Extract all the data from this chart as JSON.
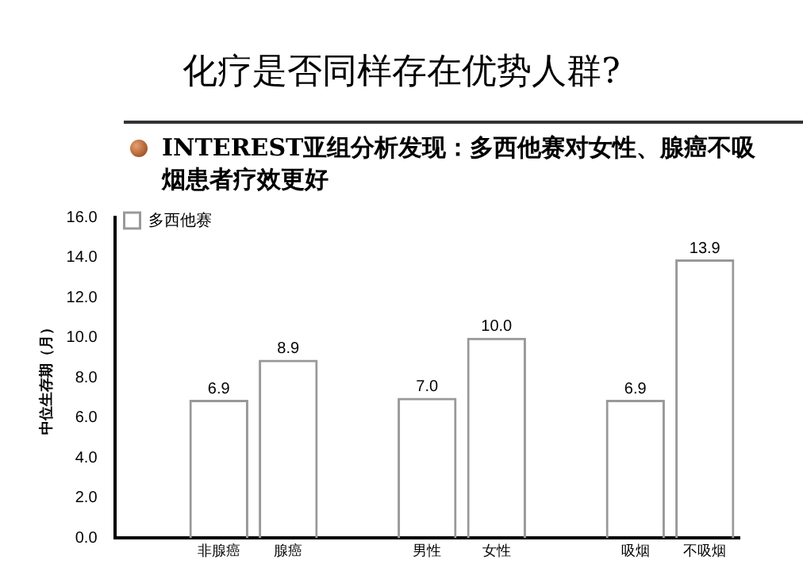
{
  "chart_data": {
    "type": "bar",
    "title": "化疗是否同样存在优势人群?",
    "subtitle": "INTEREST亚组分析发现：多西他赛对女性、腺癌不吸烟患者疗效更好",
    "ylabel": "中位生存期（月）",
    "categories": [
      null,
      "非腺癌",
      "腺癌",
      null,
      "男性",
      "女性",
      null,
      "吸烟",
      "不吸烟"
    ],
    "series": [
      {
        "name": "多西他赛",
        "color": "#999999",
        "values": [
          null,
          6.9,
          8.9,
          null,
          7.0,
          10.0,
          null,
          6.9,
          13.9
        ],
        "value_labels": [
          null,
          "6.9",
          "8.9",
          null,
          "7.0",
          "10.0",
          null,
          "6.9",
          "13.9"
        ]
      }
    ],
    "ylim": [
      0,
      16
    ],
    "yticks": [
      {
        "value": 0,
        "label": "0.0"
      },
      {
        "value": 2,
        "label": "2.0"
      },
      {
        "value": 4,
        "label": "4.0"
      },
      {
        "value": 6,
        "label": "6.0"
      },
      {
        "value": 8,
        "label": "8.0"
      },
      {
        "value": 10,
        "label": "10.0"
      },
      {
        "value": 12,
        "label": "12.0"
      },
      {
        "value": 14,
        "label": "14.0"
      },
      {
        "value": 16,
        "label": "16.0"
      }
    ],
    "grid": false,
    "legend": "top left"
  }
}
